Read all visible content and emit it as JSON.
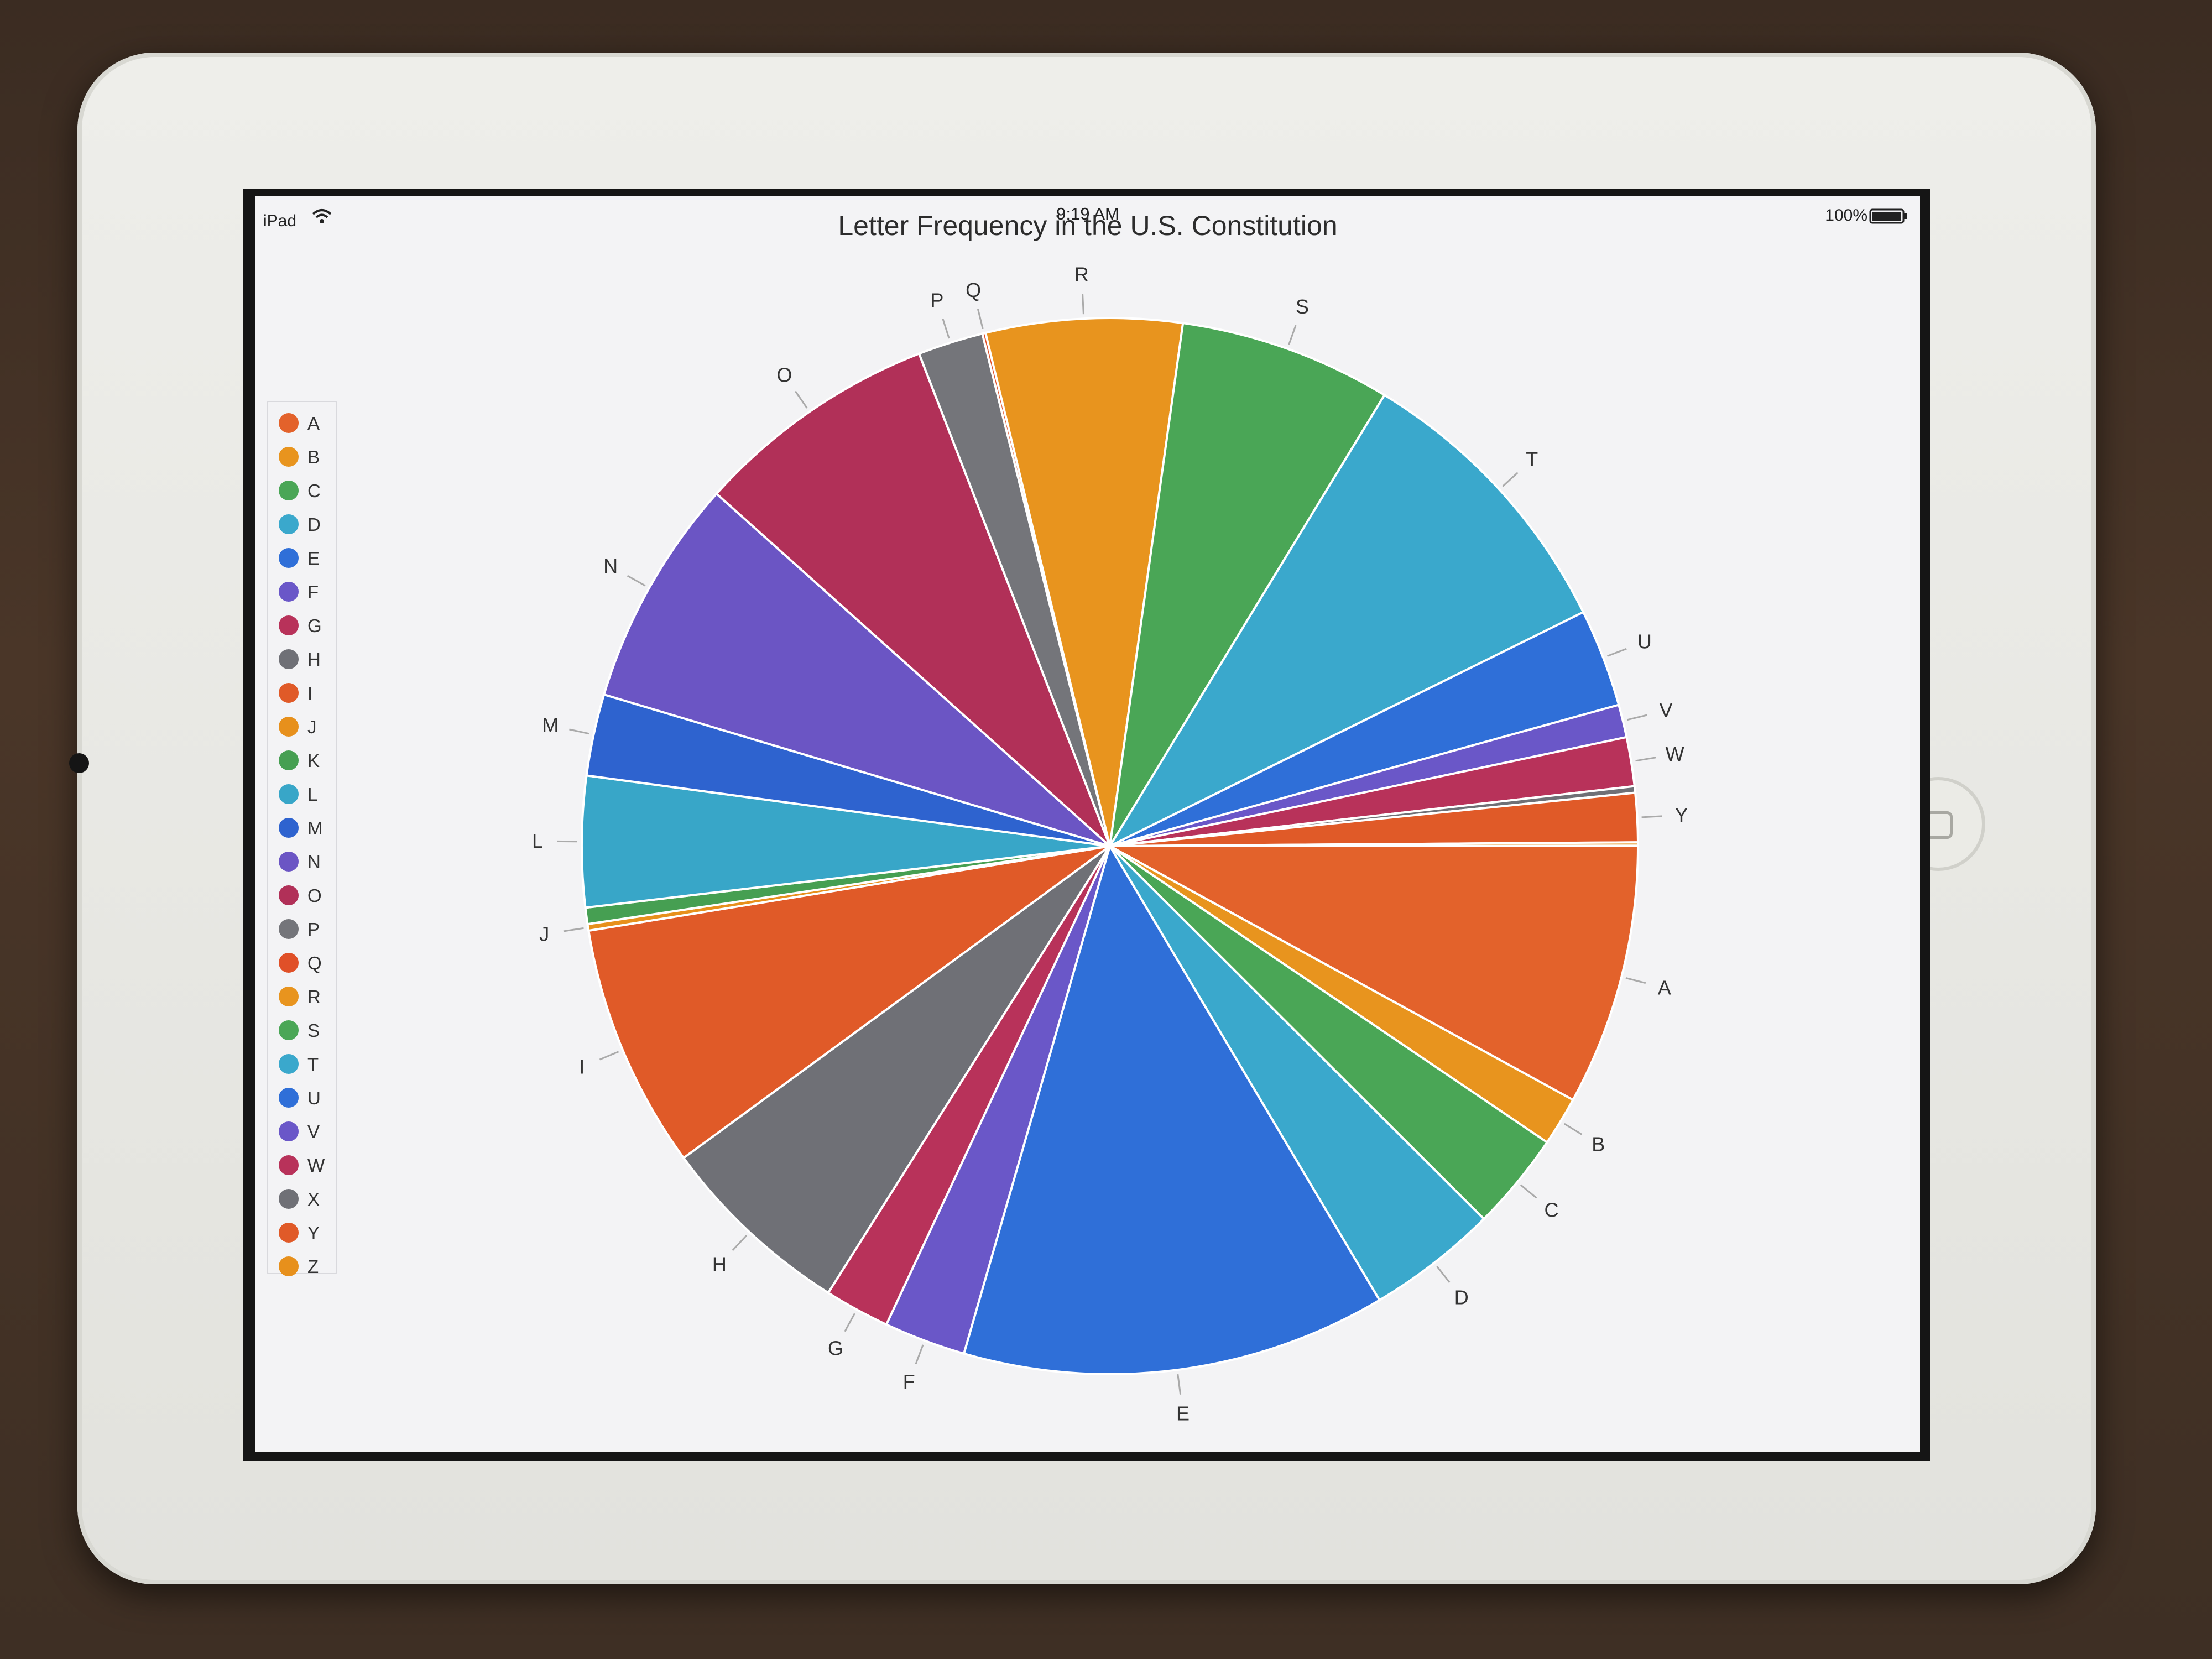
{
  "status_bar": {
    "carrier": "iPad",
    "time": "9:19 AM",
    "battery": "100%"
  },
  "chart_data": {
    "type": "pie",
    "title": "Letter Frequency in the U.S. Constitution",
    "legend_position": "left",
    "categories": [
      "A",
      "B",
      "C",
      "D",
      "E",
      "F",
      "G",
      "H",
      "I",
      "J",
      "K",
      "L",
      "M",
      "N",
      "O",
      "P",
      "Q",
      "R",
      "S",
      "T",
      "U",
      "V",
      "W",
      "X",
      "Y",
      "Z"
    ],
    "values": [
      8.0,
      1.5,
      3.0,
      4.0,
      13.0,
      2.5,
      2.0,
      6.0,
      7.5,
      0.2,
      0.5,
      4.0,
      2.5,
      7.0,
      7.5,
      2.0,
      0.1,
      6.0,
      6.5,
      9.0,
      3.0,
      1.0,
      1.5,
      0.2,
      1.5,
      0.1
    ],
    "colors": [
      "#e3622b",
      "#e8941e",
      "#4aa656",
      "#3aa8cc",
      "#2f6fd8",
      "#6a57c8",
      "#b8325a",
      "#6f7076",
      "#e05a28",
      "#e7901c",
      "#469f52",
      "#38a6c8",
      "#2e63cf",
      "#6b55c4",
      "#b13058",
      "#74757a",
      "#e05028",
      "#e8941e",
      "#4aa656",
      "#3aa8cc",
      "#2f6fd8",
      "#6a57c8",
      "#b8325a",
      "#6f7076",
      "#e05a28",
      "#e7901c"
    ],
    "labeled": [
      "A",
      "B",
      "C",
      "D",
      "E",
      "F",
      "G",
      "H",
      "I",
      "J",
      "L",
      "M",
      "N",
      "O",
      "P",
      "Q",
      "R",
      "S",
      "T",
      "U",
      "V",
      "W",
      "Y"
    ]
  }
}
